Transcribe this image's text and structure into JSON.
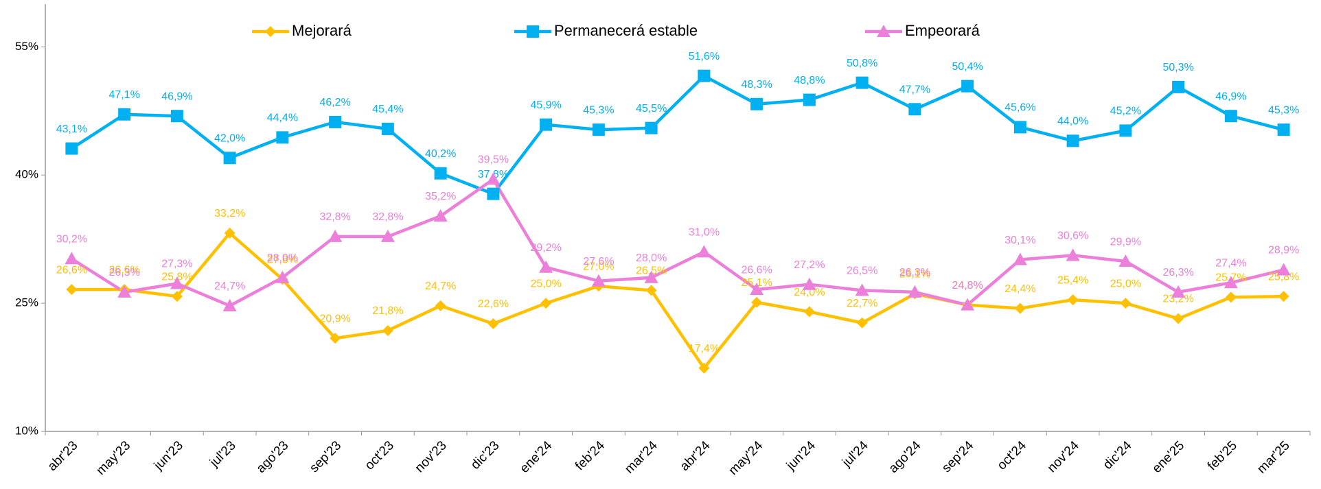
{
  "chart_data": {
    "type": "line",
    "categories": [
      "abr'23",
      "may'23",
      "jun'23",
      "jul'23",
      "ago'23",
      "sep'23",
      "oct'23",
      "nov'23",
      "dic'23",
      "ene'24",
      "feb'24",
      "mar'24",
      "abr'24",
      "may'24",
      "jun'24",
      "jul'24",
      "ago'24",
      "sep'24",
      "oct'24",
      "nov'24",
      "dic'24",
      "ene'25",
      "feb'25",
      "mar'25"
    ],
    "series": [
      {
        "name": "Mejorará",
        "color": "#FFC000",
        "marker": "diamond",
        "values": [
          26.6,
          26.6,
          25.8,
          33.2,
          27.8,
          20.9,
          21.8,
          24.7,
          22.6,
          25.0,
          27.0,
          26.5,
          17.4,
          25.1,
          24.0,
          22.7,
          26.1,
          24.8,
          24.4,
          25.4,
          25.0,
          23.2,
          25.7,
          25.8
        ],
        "value_labels": [
          "26,6%",
          "26,6%",
          "25,8%",
          "33,2%",
          "27,8%",
          "20,9%",
          "21,8%",
          "24,7%",
          "22,6%",
          "25,0%",
          "27,0%",
          "26,5%",
          "17,4%",
          "25,1%",
          "24,0%",
          "22,7%",
          "26,1%",
          "24,8%",
          "24,4%",
          "25,4%",
          "25,0%",
          "23,2%",
          "25,7%",
          "25,8%"
        ]
      },
      {
        "name": "Permanecerá estable",
        "color": "#00B0F0",
        "marker": "square",
        "values": [
          43.1,
          47.1,
          46.9,
          42.0,
          44.4,
          46.2,
          45.4,
          40.2,
          37.8,
          45.9,
          45.3,
          45.5,
          51.6,
          48.3,
          48.8,
          50.8,
          47.7,
          50.4,
          45.6,
          44.0,
          45.2,
          50.3,
          46.9,
          45.3
        ],
        "value_labels": [
          "43,1%",
          "47,1%",
          "46,9%",
          "42,0%",
          "44,4%",
          "46,2%",
          "45,4%",
          "40,2%",
          "37,8%",
          "45,9%",
          "45,3%",
          "45,5%",
          "51,6%",
          "48,3%",
          "48,8%",
          "50,8%",
          "47,7%",
          "50,4%",
          "45,6%",
          "44,0%",
          "45,2%",
          "50,3%",
          "46,9%",
          "45,3%"
        ]
      },
      {
        "name": "Empeorará",
        "color": "#EB7FDA",
        "marker": "triangle",
        "values": [
          30.2,
          26.3,
          27.3,
          24.7,
          28.0,
          32.8,
          32.8,
          35.2,
          39.5,
          29.2,
          27.6,
          28.0,
          31.0,
          26.6,
          27.2,
          26.5,
          26.3,
          24.8,
          30.1,
          30.6,
          29.9,
          26.3,
          27.4,
          28.9
        ],
        "value_labels": [
          "30,2%",
          "26,3%",
          "27,3%",
          "24,7%",
          "28,0%",
          "32,8%",
          "32,8%",
          "35,2%",
          "39,5%",
          "29,2%",
          "27,6%",
          "28,0%",
          "31,0%",
          "26,6%",
          "27,2%",
          "26,5%",
          "26,3%",
          "24,8%",
          "30,1%",
          "30,6%",
          "29,9%",
          "26,3%",
          "27,4%",
          "28,9%"
        ]
      }
    ],
    "ylim": [
      10,
      60
    ],
    "yticks": [
      {
        "value": 10,
        "label": "10%"
      },
      {
        "value": 25,
        "label": "25%"
      },
      {
        "value": 40,
        "label": "40%"
      },
      {
        "value": 55,
        "label": "55%"
      }
    ],
    "grid": false,
    "legend": "top"
  }
}
